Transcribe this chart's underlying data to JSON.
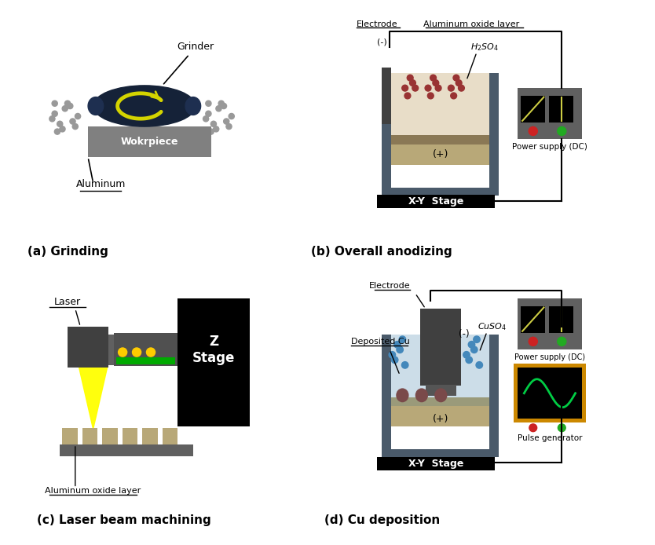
{
  "background_color": "#ffffff",
  "panel_labels": [
    "(a) Grinding",
    "(b) Overall anodizing",
    "(c) Laser beam machining",
    "(d) Cu deposition"
  ],
  "colors": {
    "dark_navy": "#152238",
    "yellow_arrow": "#d4d400",
    "gray_workpiece": "#808080",
    "dark_gray": "#404040",
    "medium_gray": "#606060",
    "light_gray": "#aaaaaa",
    "particle_gray": "#999999",
    "tan_anode": "#b8a878",
    "dark_tan": "#8a7855",
    "blue_gray_wall": "#4a5a6a",
    "light_blue_liquid": "#ccdde8",
    "beige_liquid": "#e8ddc8",
    "red_dots": "#993333",
    "blue_dots": "#4488bb",
    "yellow_beam": "#ffff00",
    "yellow_dot": "#ffcc00",
    "red_dot": "#cc2222",
    "green_dot": "#22aa22",
    "deposited_cu": "#7a4a4a",
    "pulse_border": "#cc8800",
    "pulse_green": "#00cc44",
    "green_bar": "#00aa00",
    "yellow_line": "#cccc44",
    "black": "#000000",
    "white": "#ffffff"
  }
}
